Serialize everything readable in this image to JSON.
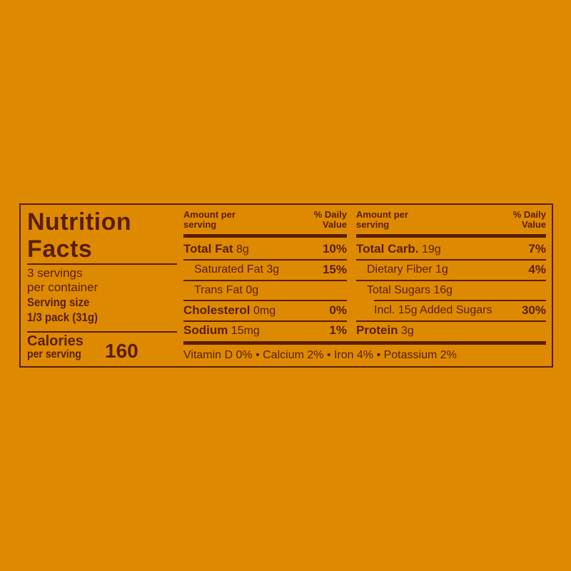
{
  "title_line1": "Nutrition",
  "title_line2": "Facts",
  "servings_line1": "3 servings",
  "servings_line2": "per container",
  "serving_size_label": "Serving size",
  "serving_size_value": "1/3 pack (31g)",
  "calories_label": "Calories",
  "calories_sub": "per serving",
  "calories_value": "160",
  "col_header": {
    "amount": "Amount per",
    "amount2": "serving",
    "dv": "% Daily",
    "dv2": "Value"
  },
  "left_rows": [
    {
      "name": "Total Fat",
      "amount": "8g",
      "dv": "10%"
    },
    {
      "name": "Saturated Fat 3g",
      "amount": "",
      "dv": "15%"
    },
    {
      "name": "Trans Fat 0g",
      "amount": "",
      "dv": ""
    },
    {
      "name": "Cholesterol",
      "amount": "0mg",
      "dv": "0%"
    },
    {
      "name": "Sodium",
      "amount": "15mg",
      "dv": "1%"
    }
  ],
  "right_rows": [
    {
      "name": "Total Carb.",
      "amount": "19g",
      "dv": "7%"
    },
    {
      "name": "Dietary Fiber 1g",
      "amount": "",
      "dv": "4%"
    },
    {
      "name": "Total Sugars 16g",
      "amount": "",
      "dv": ""
    },
    {
      "name": "Incl. 15g Added Sugars",
      "amount": "",
      "dv": "30%"
    },
    {
      "name": "Protein",
      "amount": "3g",
      "dv": ""
    }
  ],
  "vitamins": "Vitamin D 0% • Calcium 2% • Iron 4% • Potassium 2%",
  "colors": {
    "background": "#DE8A00",
    "ink": "#5A1E05"
  }
}
